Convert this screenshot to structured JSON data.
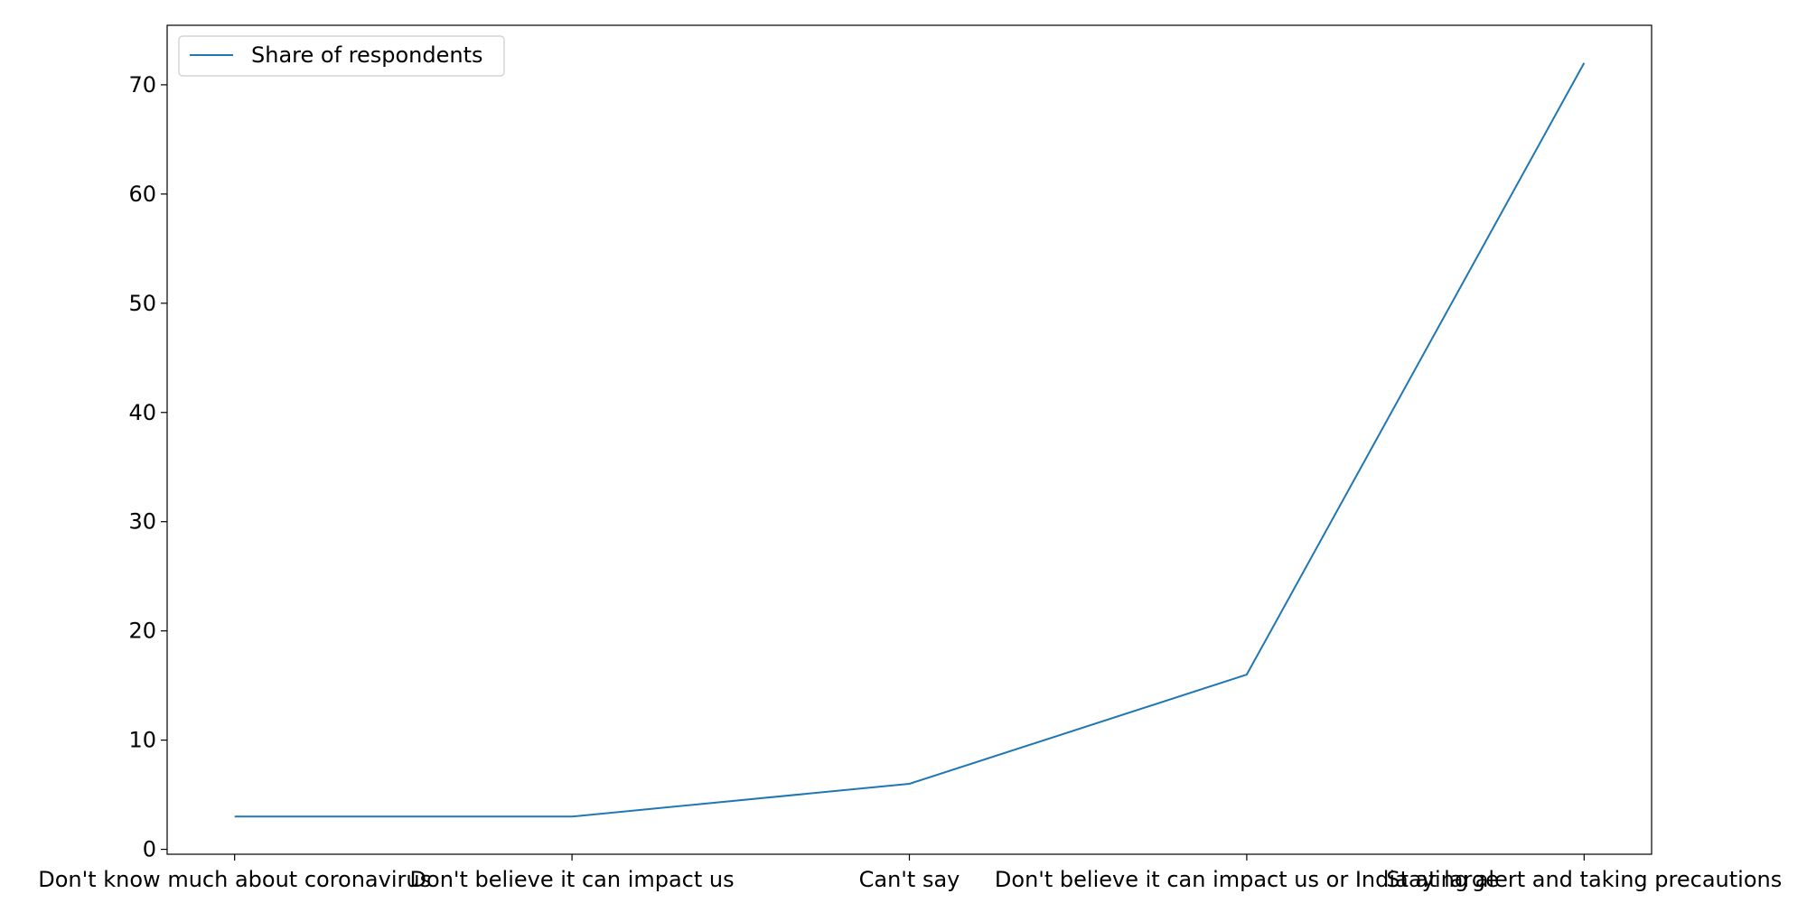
{
  "chart_data": {
    "type": "line",
    "categories": [
      "Don't know much about coronavirus",
      "Don't believe it can impact us",
      "Can't say",
      "Don't believe it can impact us or India at large",
      "Staying alert and taking precautions"
    ],
    "series": [
      {
        "name": "Share of respondents",
        "values": [
          3,
          3,
          6,
          16,
          72
        ],
        "color": "#1f77b4"
      }
    ],
    "yticks": [
      0,
      10,
      20,
      30,
      40,
      50,
      60,
      70
    ],
    "ylim": [
      -0.45,
      75.45
    ],
    "title": "",
    "xlabel": "",
    "ylabel": "",
    "grid": false,
    "legend": "top-left"
  }
}
